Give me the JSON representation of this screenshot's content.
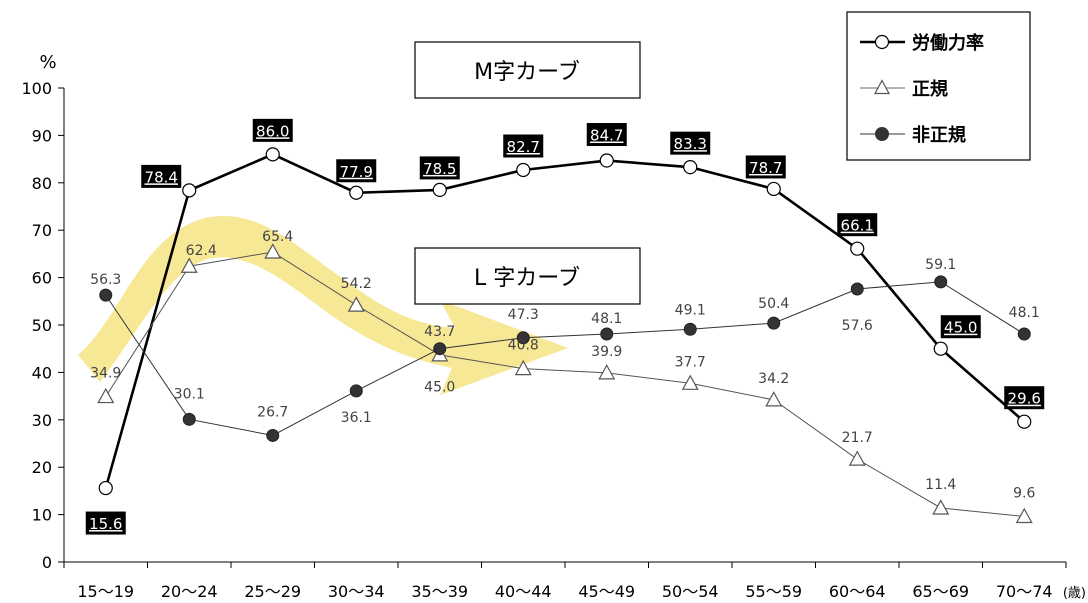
{
  "chart_data": {
    "type": "line",
    "ylabel": "%",
    "x_unit": "(歳)",
    "ylim": [
      0,
      100
    ],
    "y_ticks": [
      0,
      10,
      20,
      30,
      40,
      50,
      60,
      70,
      80,
      90,
      100
    ],
    "categories": [
      "15～19",
      "20～24",
      "25～29",
      "30～34",
      "35～39",
      "40～44",
      "45～49",
      "50～54",
      "55～59",
      "60～64",
      "65～69",
      "70～74"
    ],
    "series": [
      {
        "name": "労働力率",
        "values": [
          15.6,
          78.4,
          86.0,
          77.9,
          78.5,
          82.7,
          84.7,
          83.3,
          78.7,
          66.1,
          45.0,
          29.6
        ],
        "marker": "circle-open",
        "color": "#000000",
        "label_style": "boxed"
      },
      {
        "name": "正規",
        "values": [
          34.9,
          62.4,
          65.4,
          54.2,
          43.7,
          40.8,
          39.9,
          37.7,
          34.2,
          21.7,
          11.4,
          9.6
        ],
        "marker": "triangle-open",
        "color": "#555555",
        "label_style": "plain"
      },
      {
        "name": "非正規",
        "values": [
          56.3,
          30.1,
          26.7,
          36.1,
          45.0,
          47.3,
          48.1,
          49.1,
          50.4,
          57.6,
          59.1,
          48.1
        ],
        "marker": "circle-filled",
        "color": "#333333",
        "label_style": "plain"
      }
    ],
    "annotations": [
      {
        "text": "M字カーブ"
      },
      {
        "text": "L 字カーブ"
      }
    ],
    "highlight_arrow_color": "#f5e27a",
    "legend_position": "top-right",
    "grid": false
  }
}
